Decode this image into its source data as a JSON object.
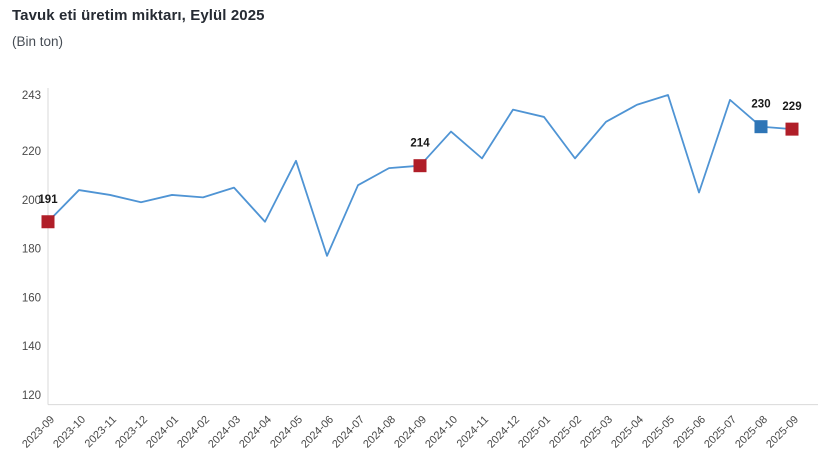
{
  "header": {
    "title": "Tavuk eti üretim miktarı, Eylül 2025",
    "subtitle": "(Bin ton)"
  },
  "chart_data": {
    "type": "line",
    "title": "Tavuk eti üretim miktarı, Eylül 2025",
    "unit_label": "(Bin ton)",
    "categories": [
      "2023-09",
      "2023-10",
      "2023-11",
      "2023-12",
      "2024-01",
      "2024-02",
      "2024-03",
      "2024-04",
      "2024-05",
      "2024-06",
      "2024-07",
      "2024-08",
      "2024-09",
      "2024-10",
      "2024-11",
      "2024-12",
      "2025-01",
      "2025-02",
      "2025-03",
      "2025-04",
      "2025-05",
      "2025-06",
      "2025-07",
      "2025-08",
      "2025-09"
    ],
    "series": [
      {
        "name": "Tavuk eti üretim miktarı (Bin ton)",
        "values": [
          191,
          204,
          202,
          199,
          202,
          201,
          205,
          191,
          216,
          177,
          206,
          213,
          214,
          228,
          217,
          237,
          234,
          217,
          232,
          239,
          243,
          203,
          241,
          230,
          229
        ]
      }
    ],
    "ylim": [
      116,
      243
    ],
    "yticks": [
      120,
      140,
      160,
      180,
      200,
      220,
      243
    ],
    "grid": false,
    "legend": "none",
    "annotations": [
      {
        "category": "2023-09",
        "label": "191",
        "marker": "square",
        "color": "#b01e28"
      },
      {
        "category": "2024-09",
        "label": "214",
        "marker": "square",
        "color": "#b01e28"
      },
      {
        "category": "2025-08",
        "label": "230",
        "marker": "square",
        "color": "#2e75b6"
      },
      {
        "category": "2025-09",
        "label": "229",
        "marker": "square",
        "color": "#b01e28"
      }
    ],
    "colors": {
      "line": "#4f94d4",
      "marker_red": "#b01e28",
      "marker_blue": "#2e75b6",
      "axis": "#d9d9d9",
      "tick_text": "#4a4a4a",
      "annotation_text": "#1a1a1a",
      "title_text": "#262b33"
    }
  }
}
